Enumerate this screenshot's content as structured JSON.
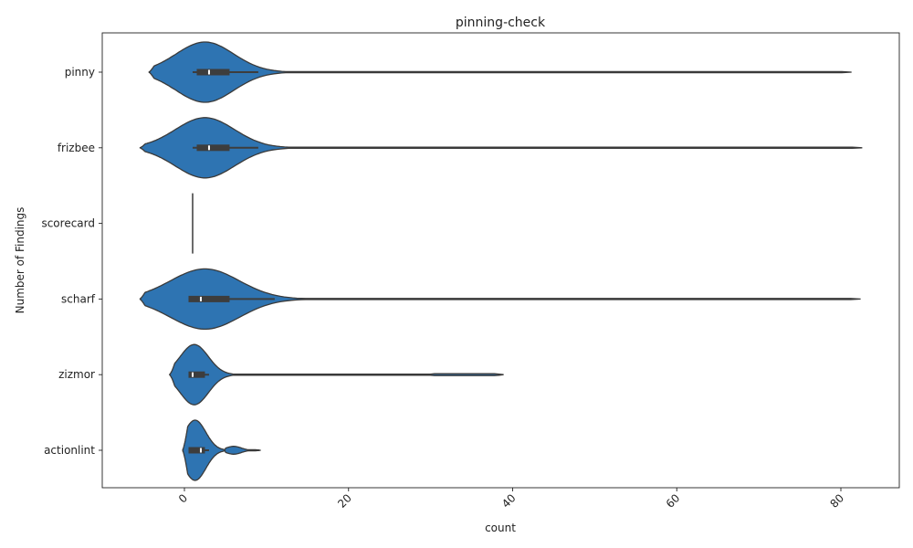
{
  "chart_data": {
    "type": "violin",
    "orientation": "horizontal",
    "title": "pinning-check",
    "xlabel": "count",
    "ylabel": "Number of Findings",
    "xlim": [
      -10,
      87
    ],
    "x_ticks": [
      0,
      20,
      40,
      60,
      80
    ],
    "x_tick_rotation": 45,
    "grid": false,
    "legend": "none",
    "colors": {
      "fill": "#2e74b2",
      "edge": "#3a3a3a",
      "box": "#3d3d3d",
      "median": "#ffffff"
    },
    "categories": [
      "pinny",
      "frizbee",
      "scorecard",
      "scharf",
      "zizmor",
      "actionlint"
    ],
    "violins": [
      {
        "name": "pinny",
        "lo": -4.3,
        "hi": 81.3,
        "peak": 2.5,
        "width": 0.8,
        "sharp": 3.5,
        "q1": 1.5,
        "median": 3,
        "q3": 5.5,
        "whisker_lo": 1,
        "whisker_hi": 9
      },
      {
        "name": "frizbee",
        "lo": -5.4,
        "hi": 82.6,
        "peak": 2.5,
        "width": 0.8,
        "sharp": 3.6,
        "q1": 1.5,
        "median": 3,
        "q3": 5.5,
        "whisker_lo": 1,
        "whisker_hi": 9
      },
      {
        "name": "scorecard",
        "lo": 1,
        "hi": 1,
        "peak": 1,
        "width": 0.8,
        "sharp": 1,
        "q1": 1,
        "median": 1,
        "q3": 1,
        "whisker_lo": 1,
        "whisker_hi": 1
      },
      {
        "name": "scharf",
        "lo": -5.4,
        "hi": 82.4,
        "peak": 2.5,
        "width": 0.8,
        "sharp": 4.2,
        "q1": 0.5,
        "median": 2,
        "q3": 5.5,
        "whisker_lo": 0.5,
        "whisker_hi": 11
      },
      {
        "name": "zizmor",
        "lo": -1.8,
        "hi": 38.9,
        "peak": 1.2,
        "width": 0.8,
        "sharp": 1.7,
        "q1": 0.5,
        "median": 1,
        "q3": 2.5,
        "whisker_lo": 0.5,
        "whisker_hi": 3
      },
      {
        "name": "actionlint",
        "lo": -0.2,
        "hi": 9.3,
        "peak": 1.3,
        "width": 0.8,
        "sharp": 1.3,
        "q1": 0.5,
        "median": 2,
        "q3": 2.5,
        "whisker_lo": 0.5,
        "whisker_hi": 3
      }
    ]
  }
}
